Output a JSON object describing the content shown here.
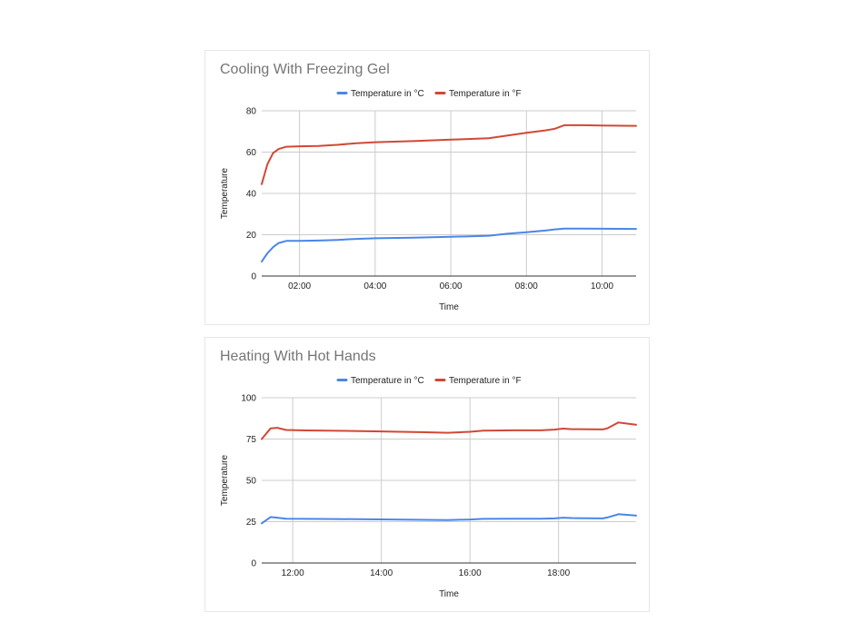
{
  "colors": {
    "celsius": "#4a86e8",
    "fahrenheit": "#d14836",
    "grid": "#cccccc",
    "axis": "#333333"
  },
  "chart_data": [
    {
      "type": "line",
      "title": "Cooling With Freezing Gel",
      "xlabel": "Time",
      "ylabel": "Temperature",
      "xlim": [
        1.0,
        10.9
      ],
      "ylim": [
        0,
        80
      ],
      "yticks": [
        0,
        20,
        40,
        60,
        80
      ],
      "xticks": [
        2,
        4,
        6,
        8,
        10
      ],
      "xtick_labels": [
        "02:00",
        "04:00",
        "06:00",
        "08:00",
        "10:00"
      ],
      "legend_position": "top",
      "series": [
        {
          "name": "Temperature in °C",
          "color": "#4a86e8",
          "x": [
            1.0,
            1.15,
            1.3,
            1.45,
            1.65,
            2.0,
            2.5,
            3.0,
            3.5,
            4.0,
            5.0,
            6.0,
            7.0,
            7.5,
            8.0,
            8.5,
            8.75,
            9.0,
            9.5,
            10.0,
            10.9
          ],
          "y": [
            7,
            11,
            14,
            16,
            17,
            17,
            17.2,
            17.5,
            18,
            18.3,
            18.6,
            19,
            19.5,
            20.5,
            21.2,
            22,
            22.6,
            23,
            23,
            22.9,
            22.8
          ]
        },
        {
          "name": "Temperature in °F",
          "color": "#d14836",
          "x": [
            1.0,
            1.15,
            1.3,
            1.45,
            1.65,
            2.0,
            2.5,
            3.0,
            3.5,
            4.0,
            5.0,
            6.0,
            7.0,
            7.5,
            8.0,
            8.5,
            8.75,
            9.0,
            9.5,
            10.0,
            10.9
          ],
          "y": [
            44.5,
            54,
            59.5,
            61.5,
            62.6,
            62.8,
            63,
            63.5,
            64.3,
            64.8,
            65.3,
            66,
            66.7,
            68,
            69.3,
            70.5,
            71.3,
            73,
            73,
            72.9,
            72.7
          ]
        }
      ]
    },
    {
      "type": "line",
      "title": "Heating With Hot Hands",
      "xlabel": "Time",
      "ylabel": "Temperature",
      "xlim": [
        11.3,
        19.75
      ],
      "ylim": [
        0,
        100
      ],
      "yticks": [
        0,
        25,
        50,
        75,
        100
      ],
      "xticks": [
        12,
        14,
        16,
        18
      ],
      "xtick_labels": [
        "12:00",
        "14:00",
        "16:00",
        "18:00"
      ],
      "legend_position": "top",
      "series": [
        {
          "name": "Temperature in °C",
          "color": "#4a86e8",
          "x": [
            11.3,
            11.5,
            11.65,
            11.85,
            12.3,
            13.0,
            14.0,
            15.0,
            15.5,
            16.0,
            16.3,
            17.0,
            17.6,
            17.9,
            18.1,
            18.3,
            19.0,
            19.1,
            19.35,
            19.75
          ],
          "y": [
            24,
            27.8,
            27.4,
            26.8,
            26.7,
            26.6,
            26.4,
            26.1,
            26,
            26.3,
            26.7,
            26.8,
            26.8,
            27,
            27.4,
            27.2,
            27,
            27.5,
            29.5,
            28.7
          ]
        },
        {
          "name": "Temperature in °F",
          "color": "#d14836",
          "x": [
            11.3,
            11.5,
            11.65,
            11.85,
            12.3,
            13.0,
            14.0,
            15.0,
            15.5,
            16.0,
            16.3,
            17.0,
            17.6,
            17.9,
            18.1,
            18.3,
            19.0,
            19.1,
            19.35,
            19.75
          ],
          "y": [
            75,
            81.5,
            81.8,
            80.5,
            80.2,
            80,
            79.6,
            79.1,
            78.8,
            79.4,
            80.1,
            80.3,
            80.3,
            80.7,
            81.3,
            81,
            80.8,
            81.5,
            85,
            83.7
          ]
        }
      ]
    }
  ]
}
